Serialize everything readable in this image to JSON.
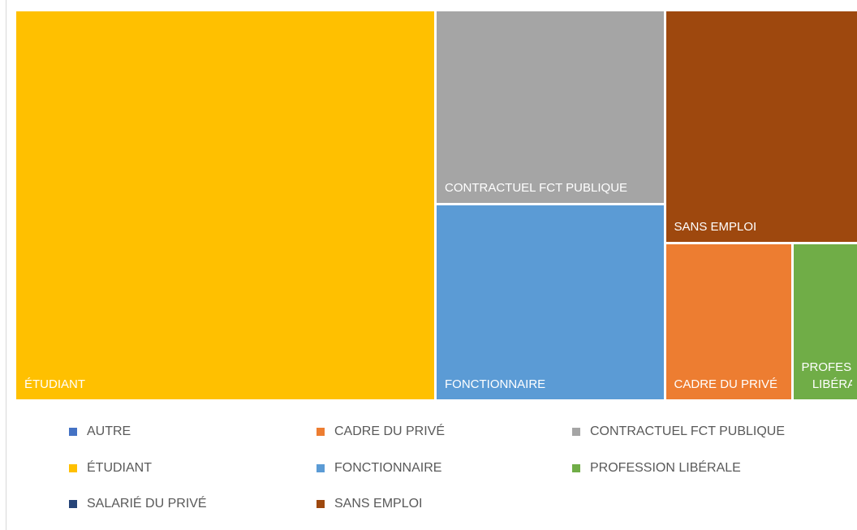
{
  "chart_data": {
    "type": "treemap",
    "series": [
      {
        "name": "AUTRE",
        "color": "#4472c4",
        "values": [
          0
        ]
      },
      {
        "name": "CADRE DU PRIVÉ",
        "color": "#ed7d31",
        "values": [
          4
        ]
      },
      {
        "name": "CONTRACTUEL FCT PUBLIQUE",
        "color": "#a5a5a5",
        "values": [
          9
        ]
      },
      {
        "name": "ÉTUDIANT",
        "color": "#ffc000",
        "values": [
          33
        ]
      },
      {
        "name": "FONCTIONNAIRE",
        "color": "#5b9bd5",
        "values": [
          9
        ]
      },
      {
        "name": "PROFESSION LIBÉRALE",
        "color": "#70ad47",
        "values": [
          2
        ]
      },
      {
        "name": "SALARIÉ DU PRIVÉ",
        "color": "#264478",
        "values": [
          0
        ]
      },
      {
        "name": "SANS EMPLOI",
        "color": "#9e480e",
        "values": [
          9
        ]
      }
    ],
    "legend": "bottom"
  }
}
